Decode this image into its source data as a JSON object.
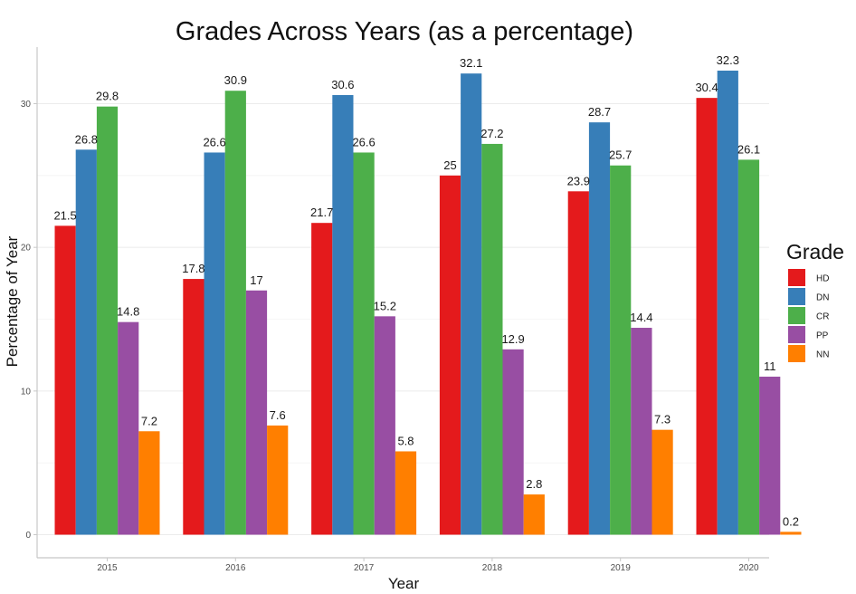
{
  "chart_data": {
    "type": "bar",
    "title": "Grades Across Years (as a percentage)",
    "xlabel": "Year",
    "ylabel": "Percentage of Year",
    "categories": [
      "2015",
      "2016",
      "2017",
      "2018",
      "2019",
      "2020"
    ],
    "series": [
      {
        "name": "HD",
        "color": "#e41a1c",
        "values": [
          21.5,
          17.8,
          21.7,
          25,
          23.9,
          30.4
        ]
      },
      {
        "name": "DN",
        "color": "#377eb8",
        "values": [
          26.8,
          26.6,
          30.6,
          32.1,
          28.7,
          32.3
        ]
      },
      {
        "name": "CR",
        "color": "#4daf4a",
        "values": [
          29.8,
          30.9,
          26.6,
          27.2,
          25.7,
          26.1
        ]
      },
      {
        "name": "PP",
        "color": "#984ea3",
        "values": [
          14.8,
          17,
          15.2,
          12.9,
          14.4,
          11
        ]
      },
      {
        "name": "NN",
        "color": "#ff7f00",
        "values": [
          7.2,
          7.6,
          5.8,
          2.8,
          7.3,
          0.2
        ]
      }
    ],
    "yticks": [
      0,
      10,
      20,
      30
    ],
    "ylim": [
      0,
      33.9
    ],
    "grid": true,
    "legend": {
      "title": "Grade",
      "position": "right"
    }
  }
}
